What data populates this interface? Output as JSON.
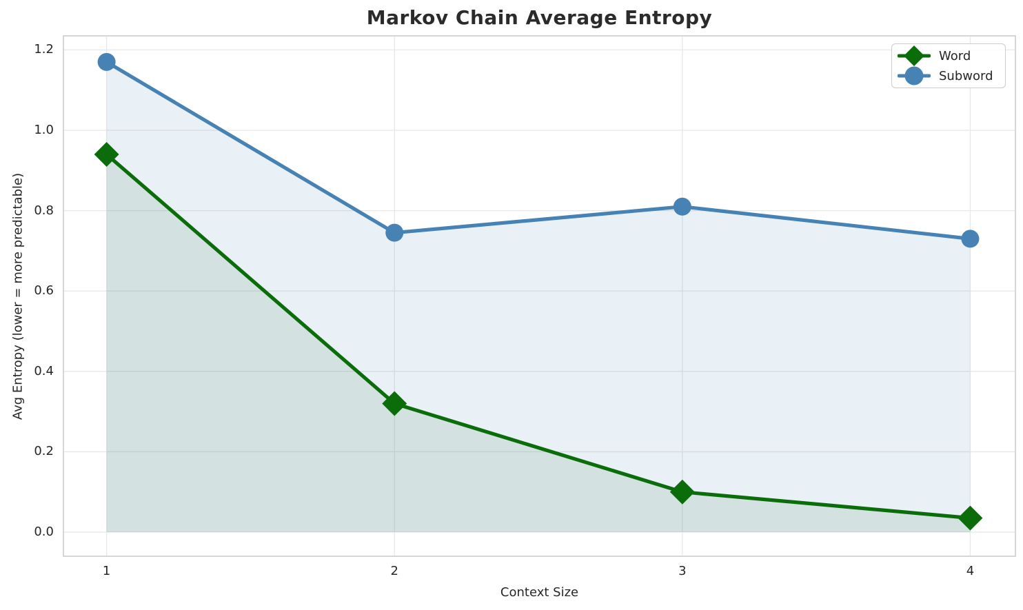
{
  "chart_data": {
    "type": "line",
    "title": "Markov Chain Average Entropy",
    "xlabel": "Context Size",
    "ylabel": "Avg Entropy (lower = more predictable)",
    "x": [
      1,
      2,
      3,
      4
    ],
    "series": [
      {
        "name": "Word",
        "values": [
          0.94,
          0.32,
          0.1,
          0.035
        ],
        "color": "#0a6d0a",
        "marker": "diamond",
        "area_fill": true,
        "fill_opacity": 0.1
      },
      {
        "name": "Subword",
        "values": [
          1.17,
          0.745,
          0.81,
          0.73
        ],
        "color": "#4682b4",
        "marker": "circle",
        "area_fill": true,
        "fill_opacity": 0.12
      }
    ],
    "xticks": [
      "1",
      "2",
      "3",
      "4"
    ],
    "xtick_values": [
      1,
      2,
      3,
      4
    ],
    "yticks": [
      "0.0",
      "0.2",
      "0.4",
      "0.6",
      "0.8",
      "1.0",
      "1.2"
    ],
    "ytick_values": [
      0,
      0.2,
      0.4,
      0.6,
      0.8,
      1.0,
      1.2
    ],
    "xlim": [
      0.85,
      4.157
    ],
    "ylim": [
      -0.06,
      1.235
    ],
    "grid": true,
    "legend_position": "upper right",
    "style_colors": {
      "grid": "#e8e8e8",
      "spine": "#cccccc",
      "text": "#262626"
    }
  }
}
